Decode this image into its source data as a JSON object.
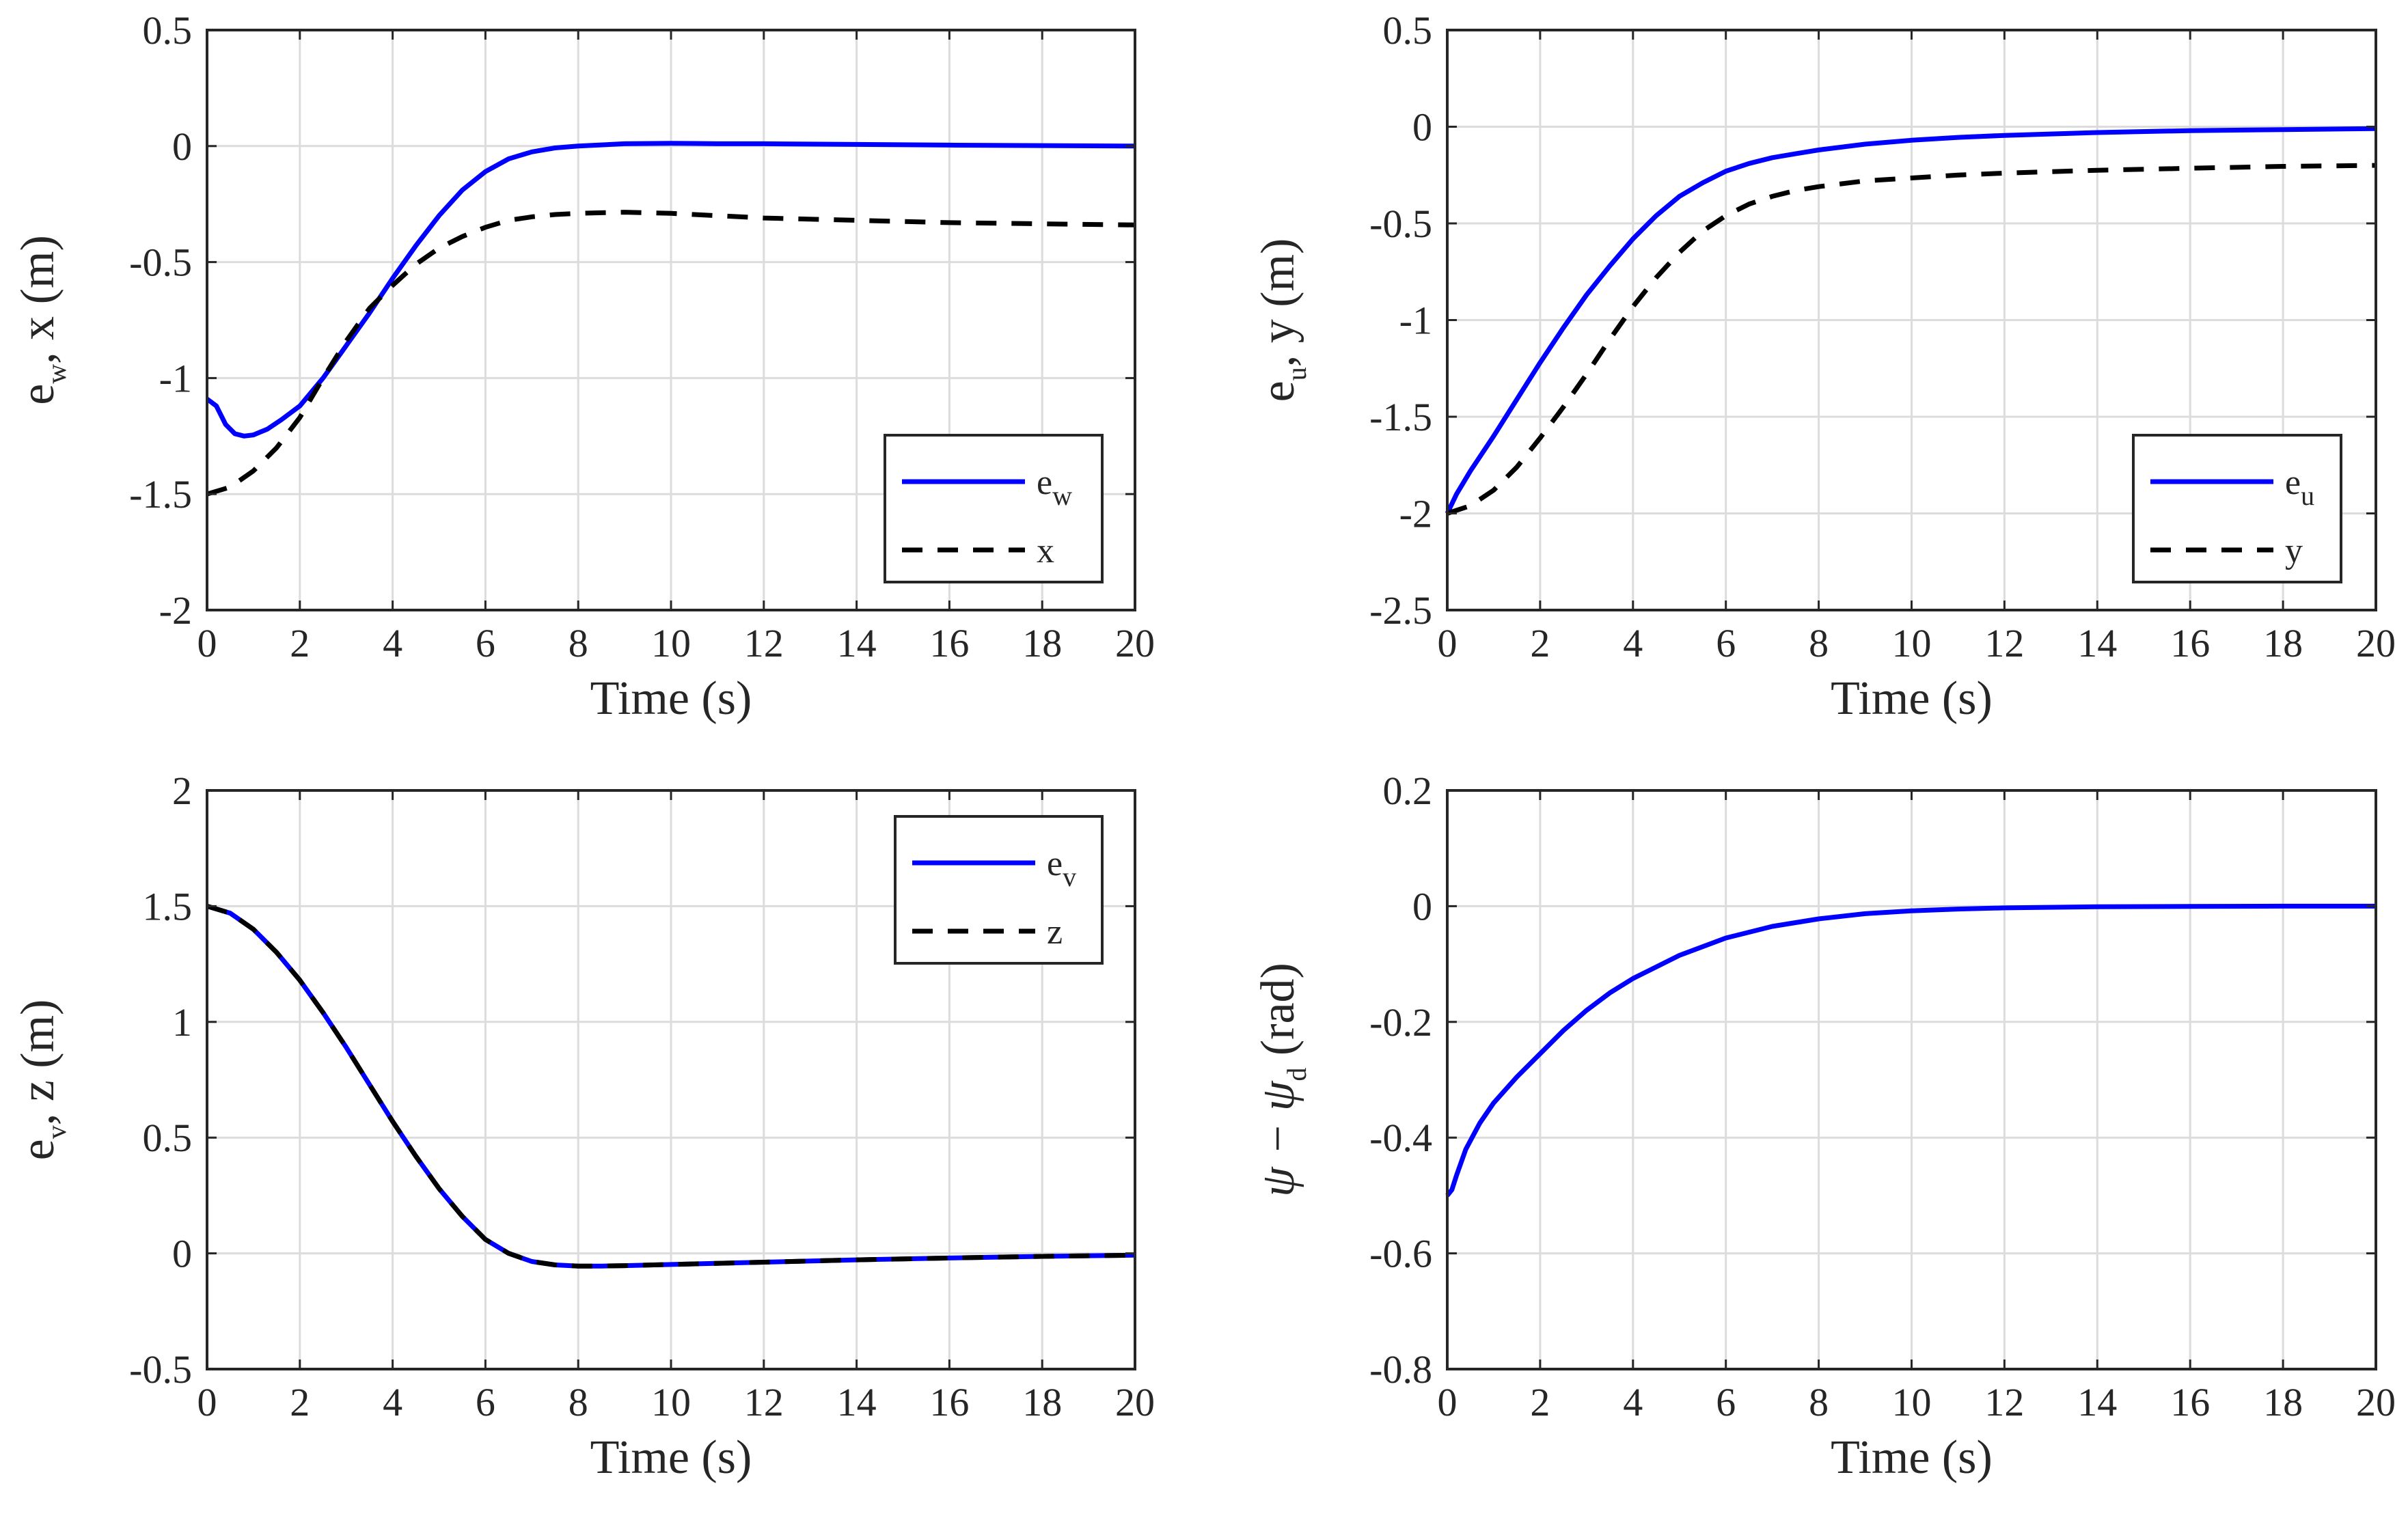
{
  "chart_data": [
    {
      "type": "line",
      "xlabel": "Time (s)",
      "ylabel": {
        "base": "e",
        "sub": "w",
        "rest": ", x (m)"
      },
      "xlim": [
        0,
        20
      ],
      "ylim": [
        -2,
        0.5
      ],
      "xticks": [
        0,
        2,
        4,
        6,
        8,
        10,
        12,
        14,
        16,
        18,
        20
      ],
      "xtick_labels": [
        "0",
        "2",
        "4",
        "6",
        "8",
        "10",
        "12",
        "14",
        "16",
        "18",
        "20"
      ],
      "yticks": [
        -2,
        -1.5,
        -1,
        -0.5,
        0,
        0.5
      ],
      "ytick_labels": [
        "-2",
        "-1.5",
        "-1",
        "-0.5",
        "0",
        "0.5"
      ],
      "grid": true,
      "legend": {
        "position": "middle-right",
        "entries": [
          {
            "base": "e",
            "sub": "w"
          },
          {
            "base": "x",
            "sub": ""
          }
        ]
      },
      "series": [
        {
          "name": "e_w",
          "style": "solid",
          "color": "#0000ff",
          "x": [
            0,
            0.2,
            0.4,
            0.6,
            0.8,
            1.0,
            1.3,
            1.6,
            2.0,
            2.5,
            3.0,
            3.5,
            4.0,
            4.5,
            5.0,
            5.5,
            6.0,
            6.5,
            7.0,
            7.5,
            8.0,
            8.5,
            9,
            10,
            11,
            12,
            14,
            16,
            18,
            20
          ],
          "y": [
            -1.09,
            -1.12,
            -1.2,
            -1.24,
            -1.25,
            -1.245,
            -1.22,
            -1.18,
            -1.12,
            -1.0,
            -0.86,
            -0.72,
            -0.57,
            -0.43,
            -0.3,
            -0.19,
            -0.11,
            -0.055,
            -0.025,
            -0.008,
            0.0,
            0.005,
            0.01,
            0.012,
            0.01,
            0.01,
            0.007,
            0.004,
            0.002,
            0.0
          ]
        },
        {
          "name": "x",
          "style": "dashed",
          "color": "#000000",
          "x": [
            0,
            0.5,
            1.0,
            1.5,
            2.0,
            2.5,
            3.0,
            3.5,
            4.0,
            4.5,
            5.0,
            5.5,
            6.0,
            6.5,
            7.0,
            7.5,
            8,
            9,
            10,
            11,
            12,
            14,
            16,
            18,
            20
          ],
          "y": [
            -1.5,
            -1.47,
            -1.4,
            -1.3,
            -1.17,
            -1.0,
            -0.84,
            -0.7,
            -0.6,
            -0.51,
            -0.44,
            -0.39,
            -0.35,
            -0.32,
            -0.305,
            -0.295,
            -0.29,
            -0.285,
            -0.29,
            -0.3,
            -0.31,
            -0.32,
            -0.33,
            -0.335,
            -0.34
          ]
        }
      ]
    },
    {
      "type": "line",
      "xlabel": "Time (s)",
      "ylabel": {
        "base": "e",
        "sub": "u",
        "rest": ", y (m)"
      },
      "xlim": [
        0,
        20
      ],
      "ylim": [
        -2.5,
        0.5
      ],
      "xticks": [
        0,
        2,
        4,
        6,
        8,
        10,
        12,
        14,
        16,
        18,
        20
      ],
      "xtick_labels": [
        "0",
        "2",
        "4",
        "6",
        "8",
        "10",
        "12",
        "14",
        "16",
        "18",
        "20"
      ],
      "yticks": [
        -2.5,
        -2,
        -1.5,
        -1,
        -0.5,
        0,
        0.5
      ],
      "ytick_labels": [
        "-2.5",
        "-2",
        "-1.5",
        "-1",
        "-0.5",
        "0",
        "0.5"
      ],
      "grid": true,
      "legend": {
        "position": "middle-right",
        "entries": [
          {
            "base": "e",
            "sub": "u"
          },
          {
            "base": "y",
            "sub": ""
          }
        ]
      },
      "series": [
        {
          "name": "e_u",
          "style": "solid",
          "color": "#0000ff",
          "x": [
            0,
            0.2,
            0.5,
            1.0,
            1.5,
            2.0,
            2.5,
            3.0,
            3.5,
            4.0,
            4.5,
            5.0,
            5.5,
            6.0,
            6.5,
            7.0,
            7.5,
            8,
            9,
            10,
            11,
            12,
            14,
            16,
            18,
            20
          ],
          "y": [
            -2.0,
            -1.9,
            -1.78,
            -1.6,
            -1.41,
            -1.22,
            -1.04,
            -0.87,
            -0.72,
            -0.58,
            -0.46,
            -0.36,
            -0.29,
            -0.23,
            -0.19,
            -0.16,
            -0.14,
            -0.12,
            -0.09,
            -0.07,
            -0.055,
            -0.045,
            -0.03,
            -0.02,
            -0.015,
            -0.01
          ]
        },
        {
          "name": "y",
          "style": "dashed",
          "color": "#000000",
          "x": [
            0,
            0.5,
            1.0,
            1.5,
            2.0,
            2.5,
            3.0,
            3.5,
            4.0,
            4.5,
            5.0,
            5.5,
            6.0,
            6.5,
            7.0,
            7.5,
            8,
            9,
            10,
            11,
            12,
            14,
            16,
            18,
            20
          ],
          "y": [
            -2.0,
            -1.96,
            -1.88,
            -1.76,
            -1.61,
            -1.45,
            -1.28,
            -1.1,
            -0.93,
            -0.78,
            -0.65,
            -0.54,
            -0.46,
            -0.4,
            -0.36,
            -0.33,
            -0.31,
            -0.28,
            -0.265,
            -0.25,
            -0.24,
            -0.225,
            -0.215,
            -0.205,
            -0.2
          ]
        }
      ]
    },
    {
      "type": "line",
      "xlabel": "Time (s)",
      "ylabel": {
        "base": "e",
        "sub": "v",
        "rest": ", z (m)"
      },
      "xlim": [
        0,
        20
      ],
      "ylim": [
        -0.5,
        2
      ],
      "xticks": [
        0,
        2,
        4,
        6,
        8,
        10,
        12,
        14,
        16,
        18,
        20
      ],
      "xtick_labels": [
        "0",
        "2",
        "4",
        "6",
        "8",
        "10",
        "12",
        "14",
        "16",
        "18",
        "20"
      ],
      "yticks": [
        -0.5,
        0,
        0.5,
        1,
        1.5,
        2
      ],
      "ytick_labels": [
        "-0.5",
        "0",
        "0.5",
        "1",
        "1.5",
        "2"
      ],
      "grid": true,
      "legend": {
        "position": "top-right",
        "entries": [
          {
            "base": "e",
            "sub": "v"
          },
          {
            "base": "z",
            "sub": ""
          }
        ]
      },
      "series": [
        {
          "name": "e_v",
          "style": "solid",
          "color": "#0000ff",
          "x": [
            0,
            0.5,
            1.0,
            1.5,
            2.0,
            2.5,
            3.0,
            3.5,
            4.0,
            4.5,
            5.0,
            5.5,
            6.0,
            6.5,
            7.0,
            7.5,
            8,
            8.5,
            9,
            10,
            12,
            14,
            16,
            18,
            20
          ],
          "y": [
            1.5,
            1.47,
            1.4,
            1.3,
            1.18,
            1.04,
            0.89,
            0.73,
            0.57,
            0.42,
            0.28,
            0.16,
            0.06,
            0.0,
            -0.035,
            -0.05,
            -0.055,
            -0.055,
            -0.053,
            -0.048,
            -0.038,
            -0.028,
            -0.02,
            -0.013,
            -0.008
          ]
        },
        {
          "name": "z",
          "style": "dashed",
          "color": "#000000",
          "x": [
            0,
            0.5,
            1.0,
            1.5,
            2.0,
            2.5,
            3.0,
            3.5,
            4.0,
            4.5,
            5.0,
            5.5,
            6.0,
            6.5,
            7.0,
            7.5,
            8,
            8.5,
            9,
            10,
            12,
            14,
            16,
            18,
            20
          ],
          "y": [
            1.5,
            1.47,
            1.4,
            1.3,
            1.18,
            1.04,
            0.89,
            0.73,
            0.57,
            0.42,
            0.28,
            0.16,
            0.06,
            0.0,
            -0.035,
            -0.05,
            -0.055,
            -0.055,
            -0.053,
            -0.048,
            -0.038,
            -0.028,
            -0.02,
            -0.013,
            -0.008
          ]
        }
      ]
    },
    {
      "type": "line",
      "xlabel": "Time (s)",
      "ylabel": {
        "pre": "ψ − ψ",
        "sub": "d",
        "rest": " (rad)"
      },
      "xlim": [
        0,
        20
      ],
      "ylim": [
        -0.8,
        0.2
      ],
      "xticks": [
        0,
        2,
        4,
        6,
        8,
        10,
        12,
        14,
        16,
        18,
        20
      ],
      "xtick_labels": [
        "0",
        "2",
        "4",
        "6",
        "8",
        "10",
        "12",
        "14",
        "16",
        "18",
        "20"
      ],
      "yticks": [
        -0.8,
        -0.6,
        -0.4,
        -0.2,
        0,
        0.2
      ],
      "ytick_labels": [
        "-0.8",
        "-0.6",
        "-0.4",
        "-0.2",
        "0",
        "0.2"
      ],
      "grid": true,
      "series": [
        {
          "name": "psi-psi_d",
          "style": "solid",
          "color": "#0000ff",
          "x": [
            0,
            0.1,
            0.2,
            0.4,
            0.7,
            1.0,
            1.5,
            2.0,
            2.5,
            3.0,
            3.5,
            4.0,
            5.0,
            6.0,
            7.0,
            8.0,
            9.0,
            10,
            11,
            12,
            14,
            16,
            18,
            20
          ],
          "y": [
            -0.5,
            -0.49,
            -0.465,
            -0.42,
            -0.375,
            -0.34,
            -0.295,
            -0.255,
            -0.215,
            -0.18,
            -0.15,
            -0.125,
            -0.085,
            -0.055,
            -0.035,
            -0.022,
            -0.013,
            -0.008,
            -0.005,
            -0.003,
            -0.001,
            -0.0005,
            0.0,
            0.0
          ]
        }
      ]
    }
  ]
}
